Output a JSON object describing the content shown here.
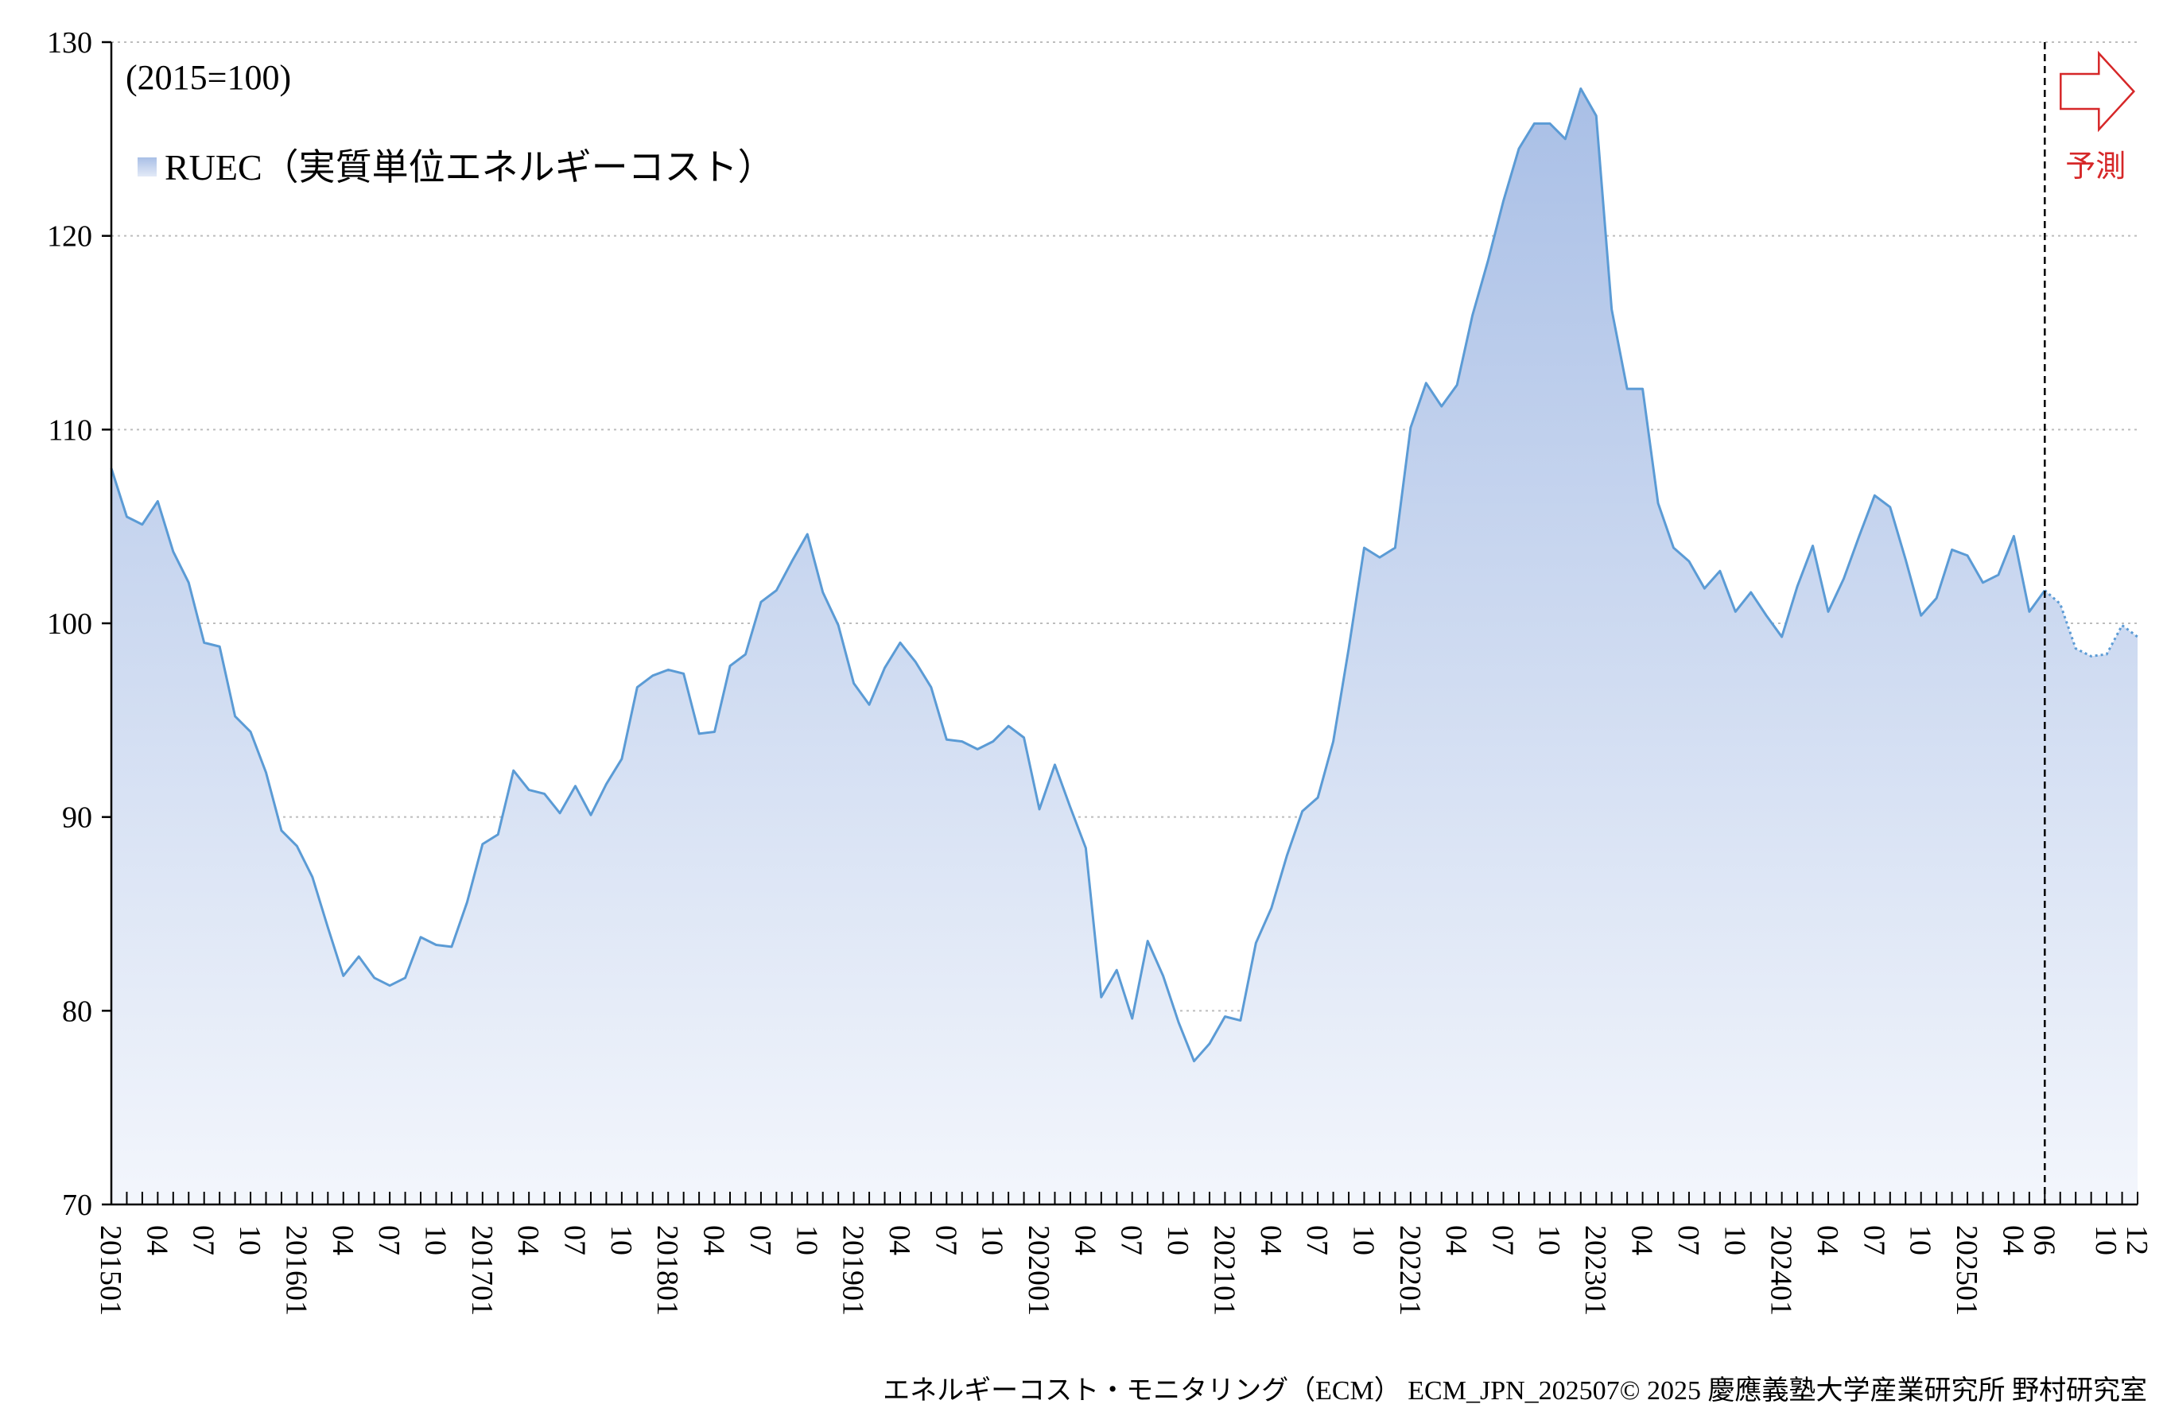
{
  "chart_data": {
    "type": "area",
    "title": "",
    "unit_note": "(2015=100)",
    "xlabel": "",
    "ylabel": "",
    "ylim": [
      70,
      130
    ],
    "yticks": [
      70,
      80,
      90,
      100,
      110,
      120,
      130
    ],
    "grid": "horizontal dotted",
    "legend": {
      "position": "top-left",
      "entries": [
        "RUEC（実質単位エネルギーコスト）"
      ]
    },
    "forecast": {
      "start_index": 125,
      "label": "予測"
    },
    "x_tick_labels": [
      {
        "i": 0,
        "t": "201501"
      },
      {
        "i": 3,
        "t": "04"
      },
      {
        "i": 6,
        "t": "07"
      },
      {
        "i": 9,
        "t": "10"
      },
      {
        "i": 12,
        "t": "201601"
      },
      {
        "i": 15,
        "t": "04"
      },
      {
        "i": 18,
        "t": "07"
      },
      {
        "i": 21,
        "t": "10"
      },
      {
        "i": 24,
        "t": "201701"
      },
      {
        "i": 27,
        "t": "04"
      },
      {
        "i": 30,
        "t": "07"
      },
      {
        "i": 33,
        "t": "10"
      },
      {
        "i": 36,
        "t": "201801"
      },
      {
        "i": 39,
        "t": "04"
      },
      {
        "i": 42,
        "t": "07"
      },
      {
        "i": 45,
        "t": "10"
      },
      {
        "i": 48,
        "t": "201901"
      },
      {
        "i": 51,
        "t": "04"
      },
      {
        "i": 54,
        "t": "07"
      },
      {
        "i": 57,
        "t": "10"
      },
      {
        "i": 60,
        "t": "202001"
      },
      {
        "i": 63,
        "t": "04"
      },
      {
        "i": 66,
        "t": "07"
      },
      {
        "i": 69,
        "t": "10"
      },
      {
        "i": 72,
        "t": "202101"
      },
      {
        "i": 75,
        "t": "04"
      },
      {
        "i": 78,
        "t": "07"
      },
      {
        "i": 81,
        "t": "10"
      },
      {
        "i": 84,
        "t": "202201"
      },
      {
        "i": 87,
        "t": "04"
      },
      {
        "i": 90,
        "t": "07"
      },
      {
        "i": 93,
        "t": "10"
      },
      {
        "i": 96,
        "t": "202301"
      },
      {
        "i": 99,
        "t": "04"
      },
      {
        "i": 102,
        "t": "07"
      },
      {
        "i": 105,
        "t": "10"
      },
      {
        "i": 108,
        "t": "202401"
      },
      {
        "i": 111,
        "t": "04"
      },
      {
        "i": 114,
        "t": "07"
      },
      {
        "i": 117,
        "t": "10"
      },
      {
        "i": 120,
        "t": "202501"
      },
      {
        "i": 123,
        "t": "04"
      },
      {
        "i": 125,
        "t": "06"
      },
      {
        "i": 129,
        "t": "10"
      },
      {
        "i": 131,
        "t": "12"
      }
    ],
    "series": [
      {
        "name": "RUEC（実質単位エネルギーコスト）",
        "color": "#5b9bd5",
        "fill_top": "#a9bfe6",
        "fill_bottom": "#f3f6fc",
        "values": [
          108.0,
          105.5,
          105.1,
          106.3,
          103.7,
          102.1,
          99.0,
          98.8,
          95.2,
          94.4,
          92.3,
          89.3,
          88.5,
          86.9,
          84.3,
          81.8,
          82.8,
          81.7,
          81.3,
          81.7,
          83.8,
          83.4,
          83.3,
          85.6,
          88.6,
          89.1,
          92.4,
          91.4,
          91.2,
          90.2,
          91.6,
          90.1,
          91.7,
          93.0,
          96.7,
          97.3,
          97.6,
          97.4,
          94.3,
          94.4,
          97.8,
          98.4,
          101.1,
          101.7,
          103.2,
          104.6,
          101.6,
          99.9,
          96.9,
          95.8,
          97.7,
          99.0,
          98.0,
          96.7,
          94.0,
          93.9,
          93.5,
          93.9,
          94.7,
          94.1,
          90.4,
          92.7,
          90.5,
          88.4,
          80.7,
          82.1,
          79.6,
          83.6,
          81.8,
          79.4,
          77.4,
          78.3,
          79.7,
          79.5,
          83.5,
          85.3,
          88.0,
          90.3,
          91.0,
          93.9,
          98.7,
          103.9,
          103.4,
          103.9,
          110.1,
          112.4,
          111.2,
          112.3,
          115.9,
          118.7,
          121.8,
          124.5,
          125.8,
          125.8,
          125.0,
          127.6,
          126.2,
          116.2,
          112.1,
          112.1,
          106.2,
          103.9,
          103.2,
          101.8,
          102.7,
          100.6,
          101.6,
          100.4,
          99.3,
          101.9,
          104.0,
          100.6,
          102.3,
          104.5,
          106.6,
          106.0,
          103.3,
          100.4,
          101.3,
          103.8,
          103.5,
          102.1,
          102.5,
          104.5,
          100.6,
          101.7,
          101.0,
          98.7,
          98.3,
          98.4,
          99.9,
          99.3
        ]
      }
    ]
  },
  "footer": {
    "text": "エネルギーコスト・モニタリング（ECM） ECM_JPN_202507© 2025 慶應義塾大学産業研究所 野村研究室"
  }
}
